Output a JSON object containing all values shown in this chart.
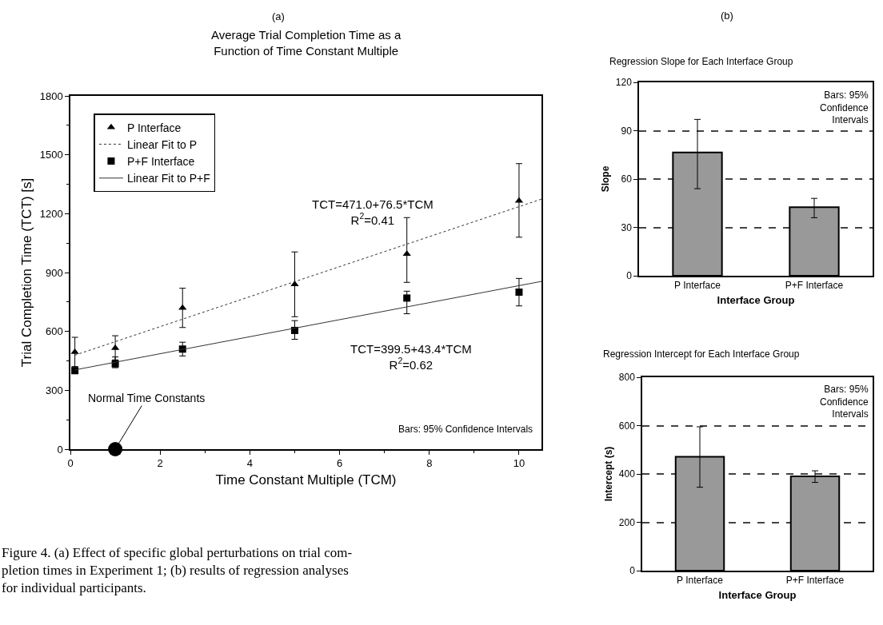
{
  "chart_data": [
    {
      "type": "scatter",
      "title": "Average Trial Completion Time as a\nFunction of Time Constant Multiple",
      "xlabel": "Time Constant Multiple (TCM)",
      "ylabel": "Trial Completion Time (TCT) [s]",
      "xlim": [
        0,
        10.5
      ],
      "xticks": [
        0,
        2,
        4,
        6,
        8,
        10
      ],
      "ylim": [
        0,
        1800
      ],
      "yticks": [
        0,
        300,
        600,
        900,
        1200,
        1500,
        1800
      ],
      "grid": false,
      "legend": "top left",
      "series": [
        {
          "name": "P Interface",
          "type": "scatter",
          "marker": "triangle",
          "color": "#000000",
          "x": [
            0.1,
            1,
            2.5,
            5,
            7.5,
            10
          ],
          "values": [
            495,
            515,
            720,
            840,
            995,
            1265
          ],
          "errors": [
            [
              420,
              570
            ],
            [
              455,
              578
            ],
            [
              620,
              820
            ],
            [
              675,
              1005
            ],
            [
              850,
              1180
            ],
            [
              1080,
              1455
            ]
          ]
        },
        {
          "name": "Linear Fit to P",
          "type": "line",
          "line_style": "dotted",
          "color": "#333333",
          "x": [
            0.1,
            10.5
          ],
          "values": [
            479,
            1274
          ]
        },
        {
          "name": "P+F Interface",
          "type": "scatter",
          "marker": "square",
          "color": "#000000",
          "x": [
            0.1,
            1,
            2.5,
            5,
            7.5,
            10
          ],
          "values": [
            400,
            435,
            510,
            605,
            770,
            800
          ],
          "errors": [
            [
              385,
              420
            ],
            [
              415,
              470
            ],
            [
              475,
              545
            ],
            [
              560,
              655
            ],
            [
              690,
              805
            ],
            [
              730,
              870
            ]
          ]
        },
        {
          "name": "Linear Fit to P+F",
          "type": "line",
          "line_style": "solid",
          "color": "#333333",
          "x": [
            0.1,
            10.5
          ],
          "values": [
            404,
            855
          ]
        },
        {
          "type": "scatter",
          "marker": "circle",
          "color": "#000000",
          "x": [
            1
          ],
          "values": [
            0
          ]
        }
      ],
      "annotations": [
        "TCT=471.0+76.5*TCM\nR$^{2}$=0.41",
        "TCT=399.5+43.4*TCM\nR$^{2}$=0.62",
        {
          "text": "Normal Time Constants",
          "x": 1,
          "y": 0
        },
        "Bars: 95% Confidence Intervals",
        "(a)",
        "Figure 4. (a) Effect of specific global perturbations on trial com-\npletion times in Experiment 1; (b) results of regression analyses\nfor individual participants."
      ]
    },
    {
      "type": "bar",
      "title": "Regression Slope for Each Interface Group",
      "xlabel": "Interface Group",
      "ylabel": "Slope",
      "categories": [
        "P Interface",
        "P+F Interface"
      ],
      "values": [
        76.5,
        42.5
      ],
      "errors": [
        [
          54,
          97
        ],
        [
          36,
          48
        ]
      ],
      "color": "#999999",
      "ylim": [
        0,
        120
      ],
      "yticks": [
        0,
        30,
        60,
        90,
        120
      ],
      "grid": "y",
      "annotations": [
        "Bars: 95%\nConfidence\nIntervals",
        "(b)"
      ]
    },
    {
      "type": "bar",
      "title": "Regression Intercept for Each Interface Group",
      "xlabel": "Interface Group",
      "ylabel": "Intercept (s)",
      "categories": [
        "P Interface",
        "P+F Interface"
      ],
      "values": [
        471,
        390
      ],
      "errors": [
        [
          345,
          595
        ],
        [
          365,
          413
        ]
      ],
      "color": "#999999",
      "ylim": [
        0,
        800
      ],
      "yticks": [
        0,
        200,
        400,
        600,
        800
      ],
      "grid": "y",
      "annotations": [
        "Bars: 95%\nConfidence\nIntervals"
      ]
    }
  ]
}
